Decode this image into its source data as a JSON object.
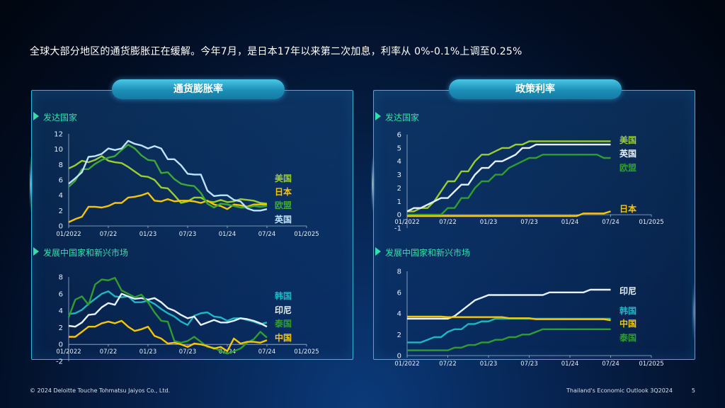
{
  "headline": "全球大部分地区的通货膨胀正在缓解。今年7月，是日本17年以来第二次加息，利率从 0%-0.1%上调至0.25%",
  "panels": {
    "left_title": "通货膨胀率",
    "right_title": "政策利率",
    "developed": "发达国家",
    "emerging": "发展中国家和新兴市场"
  },
  "footer": {
    "copyright": "© 2024 Deloitte Touche Tohmatsu Jaiyos Co., Ltd.",
    "report": "Thailand's Economic Outlook 3Q2024",
    "page": "5"
  },
  "chart_data": [
    {
      "id": "inflation_developed",
      "type": "line",
      "x_ticks": [
        "01/2022",
        "07/22",
        "01/23",
        "07/23",
        "01/24",
        "07/24",
        "01/2025"
      ],
      "ylim": [
        0,
        12
      ],
      "y_ticks": [
        "0",
        "2",
        "4",
        "6",
        "8",
        "10",
        "12"
      ],
      "series": [
        {
          "name": "美国",
          "color": "#9acd32",
          "values": [
            7.5,
            7.9,
            8.5,
            8.3,
            8.6,
            9.1,
            8.5,
            8.3,
            8.2,
            7.7,
            7.1,
            6.5,
            6.4,
            6.0,
            5.0,
            4.9,
            4.0,
            3.0,
            3.2,
            3.7,
            3.7,
            3.2,
            3.1,
            3.4,
            3.1,
            3.2,
            3.5,
            3.4,
            3.3,
            3.0,
            2.9
          ]
        },
        {
          "name": "日本",
          "color": "#f7c600",
          "values": [
            0.5,
            0.9,
            1.2,
            2.5,
            2.5,
            2.4,
            2.6,
            3.0,
            3.0,
            3.7,
            3.8,
            4.0,
            4.3,
            3.3,
            3.2,
            3.5,
            3.2,
            3.3,
            3.3,
            3.2,
            3.0,
            3.3,
            2.8,
            2.6,
            2.2,
            2.8,
            2.7,
            2.5,
            2.8,
            2.8,
            2.8
          ]
        },
        {
          "name": "欧盟",
          "color": "#3da935",
          "values": [
            5.1,
            5.9,
            7.4,
            7.4,
            8.1,
            8.6,
            8.9,
            9.1,
            9.9,
            10.6,
            10.1,
            9.2,
            8.6,
            8.5,
            6.9,
            7.0,
            6.1,
            5.5,
            5.3,
            5.2,
            4.3,
            2.9,
            2.4,
            2.9,
            2.8,
            2.6,
            2.4,
            2.4,
            2.6,
            2.5,
            2.6
          ]
        },
        {
          "name": "英国",
          "color": "#bfe3ff",
          "values": [
            5.5,
            6.2,
            7.0,
            9.0,
            9.1,
            9.4,
            10.1,
            9.9,
            10.1,
            11.1,
            10.7,
            10.5,
            10.1,
            10.4,
            10.1,
            8.7,
            8.7,
            7.9,
            6.8,
            6.7,
            6.7,
            4.6,
            3.9,
            4.0,
            4.0,
            3.4,
            3.2,
            2.3,
            2.0,
            2.0,
            2.2
          ]
        }
      ]
    },
    {
      "id": "inflation_emerging",
      "type": "line",
      "x_ticks": [
        "01/2022",
        "07/22",
        "01/23",
        "07/23",
        "01/24",
        "07/24",
        "01/2025"
      ],
      "ylim": [
        -2,
        8
      ],
      "y_ticks": [
        "-2",
        "0",
        "2",
        "4",
        "6",
        "8"
      ],
      "series": [
        {
          "name": "韩国",
          "color": "#1fb6c4",
          "values": [
            3.6,
            3.7,
            4.1,
            4.8,
            5.4,
            6.0,
            6.3,
            5.7,
            5.6,
            5.7,
            5.0,
            5.0,
            5.2,
            4.8,
            4.2,
            3.7,
            3.3,
            2.7,
            2.3,
            3.4,
            3.7,
            3.8,
            3.3,
            3.2,
            2.8,
            3.1,
            3.1,
            2.9,
            2.7,
            2.4,
            2.6
          ]
        },
        {
          "name": "印尼",
          "color": "#e6f0ff",
          "values": [
            2.2,
            2.1,
            2.6,
            3.5,
            3.6,
            4.4,
            4.9,
            4.7,
            6.0,
            5.7,
            5.4,
            5.5,
            5.3,
            5.5,
            5.0,
            4.3,
            4.0,
            3.5,
            3.1,
            3.3,
            2.3,
            2.6,
            2.9,
            2.6,
            2.6,
            2.8,
            3.1,
            3.0,
            2.8,
            2.5,
            2.1
          ]
        },
        {
          "name": "泰国",
          "color": "#2f9e2f",
          "values": [
            3.2,
            5.3,
            5.7,
            4.7,
            7.1,
            7.7,
            7.6,
            7.9,
            6.4,
            6.0,
            5.6,
            5.9,
            5.0,
            3.8,
            2.8,
            2.7,
            0.4,
            0.2,
            0.4,
            0.9,
            0.3,
            -0.3,
            -0.4,
            -0.8,
            -1.1,
            -0.8,
            -0.5,
            0.2,
            0.6,
            1.5,
            0.8
          ]
        },
        {
          "name": "中国",
          "color": "#f7c600",
          "values": [
            0.9,
            0.9,
            1.5,
            2.1,
            2.1,
            2.5,
            2.7,
            2.5,
            2.8,
            2.1,
            1.6,
            1.8,
            2.1,
            1.0,
            0.7,
            0.1,
            0.2,
            0.0,
            -0.3,
            0.1,
            0.0,
            -0.2,
            -0.5,
            -0.3,
            -0.8,
            0.7,
            0.1,
            0.3,
            0.3,
            0.2,
            0.5
          ]
        }
      ]
    },
    {
      "id": "policy_developed",
      "type": "line",
      "x_ticks": [
        "01/2022",
        "07/22",
        "01/23",
        "07/23",
        "01/24",
        "07/24",
        "01/2025"
      ],
      "ylim": [
        -1,
        6
      ],
      "y_ticks": [
        "-1",
        "0",
        "1",
        "2",
        "3",
        "4",
        "5",
        "6"
      ],
      "series": [
        {
          "name": "美国",
          "color": "#9acd32",
          "values": [
            0.25,
            0.25,
            0.5,
            0.5,
            1.0,
            1.75,
            2.5,
            2.5,
            3.25,
            3.25,
            4.0,
            4.5,
            4.5,
            4.75,
            5.0,
            5.0,
            5.25,
            5.25,
            5.5,
            5.5,
            5.5,
            5.5,
            5.5,
            5.5,
            5.5,
            5.5,
            5.5,
            5.5,
            5.5,
            5.5,
            5.5
          ]
        },
        {
          "name": "英国",
          "color": "#e6f0ff",
          "values": [
            0.25,
            0.5,
            0.5,
            0.75,
            1.0,
            1.25,
            1.25,
            1.75,
            2.25,
            2.25,
            3.0,
            3.5,
            3.5,
            4.0,
            4.0,
            4.25,
            4.5,
            5.0,
            5.0,
            5.25,
            5.25,
            5.25,
            5.25,
            5.25,
            5.25,
            5.25,
            5.25,
            5.25,
            5.25,
            5.25,
            5.25
          ]
        },
        {
          "name": "欧盟",
          "color": "#2f9e2f",
          "values": [
            0,
            0,
            0,
            0,
            0,
            0,
            0.5,
            0.5,
            1.25,
            1.25,
            2.0,
            2.5,
            2.5,
            3.0,
            3.0,
            3.5,
            3.75,
            4.0,
            4.25,
            4.25,
            4.5,
            4.5,
            4.5,
            4.5,
            4.5,
            4.5,
            4.5,
            4.5,
            4.5,
            4.25,
            4.25
          ]
        },
        {
          "name": "日本",
          "color": "#f7c600",
          "values": [
            -0.1,
            -0.1,
            -0.1,
            -0.1,
            -0.1,
            -0.1,
            -0.1,
            -0.1,
            -0.1,
            -0.1,
            -0.1,
            -0.1,
            -0.1,
            -0.1,
            -0.1,
            -0.1,
            -0.1,
            -0.1,
            -0.1,
            -0.1,
            -0.1,
            -0.1,
            -0.1,
            -0.1,
            -0.1,
            -0.1,
            0.1,
            0.1,
            0.1,
            0.1,
            0.25
          ]
        }
      ]
    },
    {
      "id": "policy_emerging",
      "type": "line",
      "x_ticks": [
        "01/2022",
        "07/22",
        "01/23",
        "07/23",
        "01/24",
        "07/24",
        "01/2025"
      ],
      "ylim": [
        0,
        8
      ],
      "y_ticks": [
        "0",
        "2",
        "4",
        "6",
        "8"
      ],
      "series": [
        {
          "name": "印尼",
          "color": "#e6f0ff",
          "values": [
            3.5,
            3.5,
            3.5,
            3.5,
            3.5,
            3.5,
            3.5,
            3.75,
            4.25,
            4.75,
            5.25,
            5.5,
            5.75,
            5.75,
            5.75,
            5.75,
            5.75,
            5.75,
            5.75,
            5.75,
            5.75,
            6.0,
            6.0,
            6.0,
            6.0,
            6.0,
            6.0,
            6.25,
            6.25,
            6.25,
            6.25
          ]
        },
        {
          "name": "韩国",
          "color": "#1fb6c4",
          "values": [
            1.25,
            1.25,
            1.25,
            1.5,
            1.75,
            1.75,
            2.25,
            2.5,
            2.5,
            3.0,
            3.0,
            3.25,
            3.25,
            3.5,
            3.5,
            3.5,
            3.5,
            3.5,
            3.5,
            3.5,
            3.5,
            3.5,
            3.5,
            3.5,
            3.5,
            3.5,
            3.5,
            3.5,
            3.5,
            3.5,
            3.5
          ]
        },
        {
          "name": "中国",
          "color": "#f7c600",
          "values": [
            3.7,
            3.7,
            3.7,
            3.7,
            3.7,
            3.7,
            3.65,
            3.65,
            3.65,
            3.65,
            3.65,
            3.65,
            3.65,
            3.65,
            3.65,
            3.55,
            3.55,
            3.55,
            3.55,
            3.45,
            3.45,
            3.45,
            3.45,
            3.45,
            3.45,
            3.45,
            3.45,
            3.45,
            3.45,
            3.45,
            3.35
          ]
        },
        {
          "name": "泰国",
          "color": "#2f9e2f",
          "values": [
            0.5,
            0.5,
            0.5,
            0.5,
            0.5,
            0.5,
            0.5,
            0.75,
            0.75,
            1.0,
            1.0,
            1.25,
            1.25,
            1.5,
            1.5,
            1.75,
            1.75,
            2.0,
            2.0,
            2.25,
            2.5,
            2.5,
            2.5,
            2.5,
            2.5,
            2.5,
            2.5,
            2.5,
            2.5,
            2.5,
            2.5
          ]
        }
      ]
    }
  ]
}
